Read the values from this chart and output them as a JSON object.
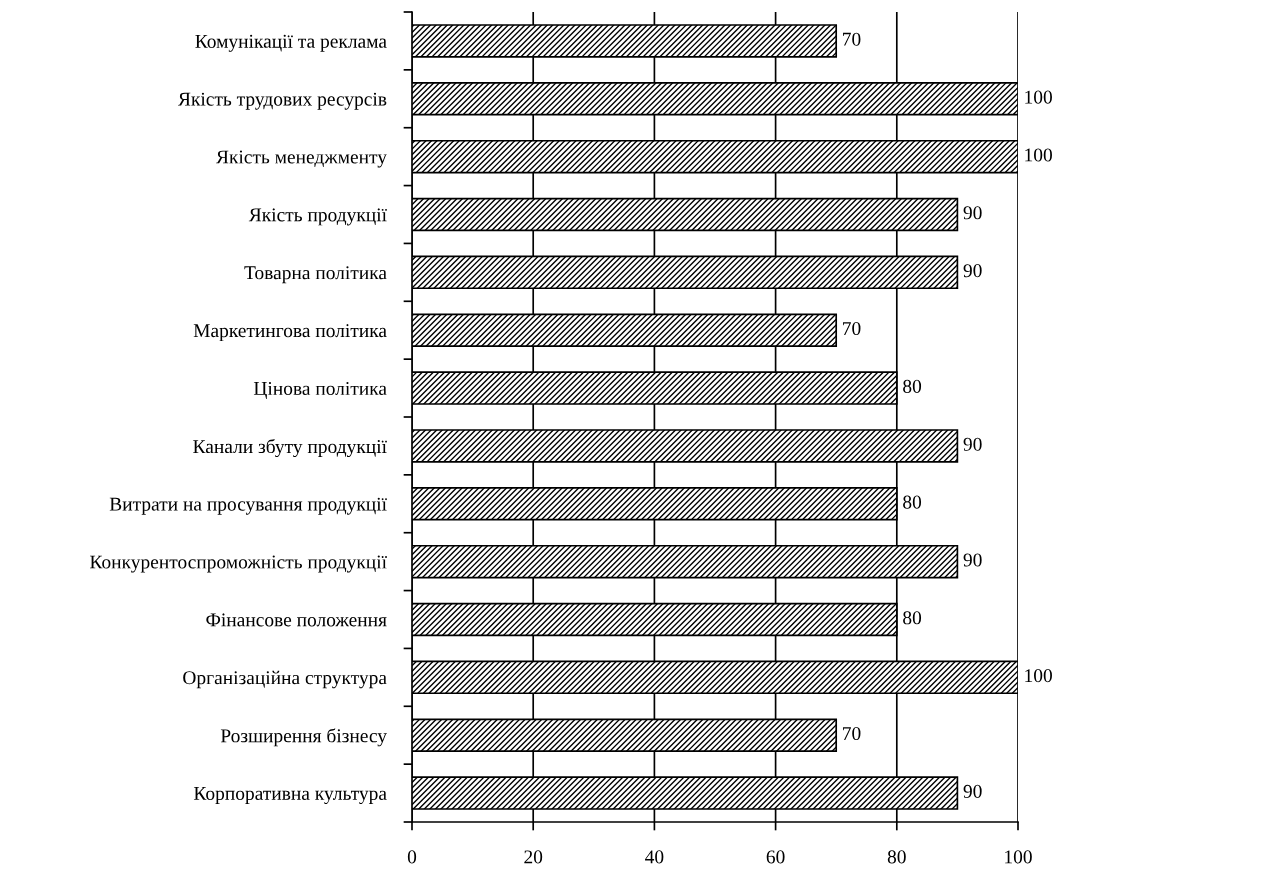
{
  "chart_data": {
    "type": "bar",
    "orientation": "horizontal",
    "categories": [
      "Комунікації та реклама",
      "Якість трудових ресурсів",
      "Якість менеджменту",
      "Якість продукції",
      "Товарна політика",
      "Маркетингова політика",
      "Цінова політика",
      "Канали збуту продукції",
      "Витрати на просування продукції",
      "Конкурентоспроможність продукції",
      "Фінансове положення",
      "Організаційна структура",
      "Розширення бізнесу",
      "Корпоративна культура"
    ],
    "values": [
      70,
      100,
      100,
      90,
      90,
      70,
      80,
      90,
      80,
      90,
      80,
      100,
      70,
      90
    ],
    "color": "#000000",
    "xlim": [
      0,
      100
    ],
    "xticks": [
      0,
      20,
      40,
      60,
      80,
      100
    ],
    "grid": "x",
    "data_labels": true
  }
}
